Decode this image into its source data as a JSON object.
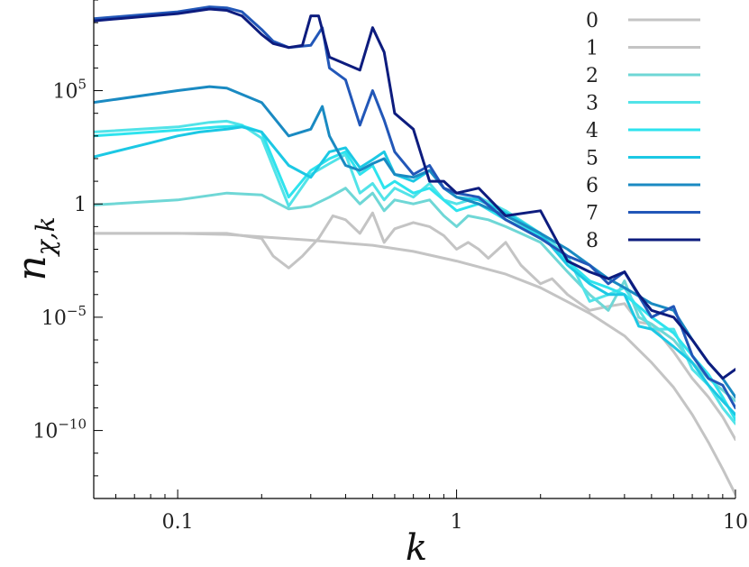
{
  "chart_data": {
    "type": "line",
    "xscale": "log",
    "yscale": "log",
    "xlim": [
      0.05,
      10
    ],
    "ylim": [
      1e-13,
      1000000000.0
    ],
    "xlabel": "k",
    "ylabel_main": "n",
    "ylabel_sub": "χ,k",
    "grid": false,
    "legend_position": "top-right",
    "x_ticks": [
      {
        "value": 0.1,
        "label": "0.1"
      },
      {
        "value": 1,
        "label": "1"
      },
      {
        "value": 10,
        "label": "10"
      }
    ],
    "y_ticks": [
      {
        "value": 100000.0,
        "base": "10",
        "exp": "5"
      },
      {
        "value": 1,
        "base": "1",
        "exp": ""
      },
      {
        "value": 1e-05,
        "base": "10",
        "exp": "−5"
      },
      {
        "value": 1e-10,
        "base": "10",
        "exp": "−10"
      }
    ],
    "series": [
      {
        "name": "0",
        "color": "#c4c4c4",
        "points": [
          [
            0.05,
            0.05
          ],
          [
            0.1,
            0.05
          ],
          [
            0.15,
            0.045
          ],
          [
            0.2,
            0.035
          ],
          [
            0.3,
            0.025
          ],
          [
            0.5,
            0.015
          ],
          [
            0.7,
            0.008
          ],
          [
            1.0,
            0.003
          ],
          [
            1.5,
            0.0008
          ],
          [
            2.0,
            0.0002
          ],
          [
            3.0,
            1.5e-05
          ],
          [
            4.0,
            1.5e-06
          ],
          [
            5.0,
            1e-07
          ],
          [
            6.0,
            8e-09
          ],
          [
            7.0,
            5e-10
          ],
          [
            8.0,
            3e-11
          ],
          [
            9.0,
            2e-12
          ],
          [
            10.0,
            1.5e-13
          ]
        ]
      },
      {
        "name": "1",
        "color": "#c4c4c4",
        "points": [
          [
            0.05,
            0.05
          ],
          [
            0.1,
            0.05
          ],
          [
            0.15,
            0.05
          ],
          [
            0.2,
            0.03
          ],
          [
            0.22,
            0.005
          ],
          [
            0.25,
            0.0015
          ],
          [
            0.28,
            0.005
          ],
          [
            0.32,
            0.03
          ],
          [
            0.36,
            0.3
          ],
          [
            0.4,
            0.2
          ],
          [
            0.45,
            0.05
          ],
          [
            0.5,
            0.4
          ],
          [
            0.55,
            0.02
          ],
          [
            0.6,
            0.08
          ],
          [
            0.7,
            0.15
          ],
          [
            0.8,
            0.1
          ],
          [
            0.9,
            0.04
          ],
          [
            1.0,
            0.01
          ],
          [
            1.1,
            0.02
          ],
          [
            1.2,
            0.01
          ],
          [
            1.3,
            0.004
          ],
          [
            1.5,
            0.02
          ],
          [
            1.7,
            0.002
          ],
          [
            2.0,
            0.0003
          ],
          [
            2.2,
            0.0005
          ],
          [
            2.5,
            0.0001
          ],
          [
            3.0,
            2e-05
          ],
          [
            3.5,
            3e-05
          ],
          [
            4.0,
            4e-05
          ],
          [
            4.5,
            6e-06
          ],
          [
            5.0,
            5e-06
          ],
          [
            6.0,
            3e-07
          ],
          [
            7.0,
            2e-08
          ],
          [
            8.0,
            3e-09
          ],
          [
            9.0,
            4e-10
          ],
          [
            10.0,
            4e-11
          ]
        ]
      },
      {
        "name": "2",
        "color": "#6fd7d6",
        "points": [
          [
            0.05,
            0.9
          ],
          [
            0.1,
            1.5
          ],
          [
            0.15,
            3.0
          ],
          [
            0.2,
            2.5
          ],
          [
            0.25,
            0.6
          ],
          [
            0.3,
            0.8
          ],
          [
            0.35,
            2.0
          ],
          [
            0.4,
            5.0
          ],
          [
            0.45,
            1.0
          ],
          [
            0.5,
            3.0
          ],
          [
            0.55,
            0.5
          ],
          [
            0.6,
            1.5
          ],
          [
            0.7,
            1.0
          ],
          [
            0.8,
            1.5
          ],
          [
            0.9,
            0.3
          ],
          [
            1.0,
            0.1
          ],
          [
            1.1,
            0.3
          ],
          [
            1.3,
            0.2
          ],
          [
            1.5,
            0.1
          ],
          [
            1.7,
            0.05
          ],
          [
            2.0,
            0.02
          ],
          [
            2.5,
            0.001
          ],
          [
            3.0,
            0.0001
          ],
          [
            3.5,
            2e-05
          ],
          [
            4.0,
            0.0004
          ],
          [
            4.5,
            1e-05
          ],
          [
            5.0,
            5e-06
          ],
          [
            6.0,
            1e-06
          ],
          [
            7.0,
            1e-07
          ],
          [
            8.0,
            2e-08
          ],
          [
            9.0,
            6e-09
          ],
          [
            10.0,
            2e-09
          ]
        ]
      },
      {
        "name": "3",
        "color": "#52e3e8",
        "points": [
          [
            0.05,
            1500
          ],
          [
            0.1,
            2500
          ],
          [
            0.13,
            4000
          ],
          [
            0.15,
            4500
          ],
          [
            0.17,
            3000
          ],
          [
            0.2,
            800
          ],
          [
            0.25,
            0.8
          ],
          [
            0.3,
            20
          ],
          [
            0.35,
            60
          ],
          [
            0.4,
            150
          ],
          [
            0.45,
            3.0
          ],
          [
            0.5,
            8.0
          ],
          [
            0.55,
            1.5
          ],
          [
            0.6,
            5.0
          ],
          [
            0.7,
            2.0
          ],
          [
            0.8,
            8.0
          ],
          [
            0.9,
            1.5
          ],
          [
            1.0,
            1.0
          ],
          [
            1.2,
            2.0
          ],
          [
            1.5,
            0.5
          ],
          [
            2.0,
            0.05
          ],
          [
            2.5,
            0.005
          ],
          [
            3.0,
            5e-05
          ],
          [
            3.5,
            0.0001
          ],
          [
            4.0,
            0.0002
          ],
          [
            5.0,
            3e-06
          ],
          [
            6.0,
            3e-06
          ],
          [
            7.0,
            5e-08
          ],
          [
            8.0,
            1e-08
          ],
          [
            9.0,
            1e-09
          ],
          [
            10.0,
            2e-10
          ]
        ]
      },
      {
        "name": "4",
        "color": "#2ee3ee",
        "points": [
          [
            0.05,
            1000
          ],
          [
            0.1,
            1800
          ],
          [
            0.14,
            2500
          ],
          [
            0.17,
            2800
          ],
          [
            0.2,
            1500
          ],
          [
            0.25,
            2.0
          ],
          [
            0.3,
            30
          ],
          [
            0.35,
            100
          ],
          [
            0.4,
            200
          ],
          [
            0.45,
            20
          ],
          [
            0.5,
            50
          ],
          [
            0.55,
            5.0
          ],
          [
            0.6,
            10.0
          ],
          [
            0.7,
            3.0
          ],
          [
            0.8,
            5.0
          ],
          [
            1.0,
            0.5
          ],
          [
            1.2,
            1.0
          ],
          [
            1.5,
            0.2
          ],
          [
            2.0,
            0.04
          ],
          [
            2.5,
            0.003
          ],
          [
            3.0,
            0.0004
          ],
          [
            3.5,
            0.0002
          ],
          [
            4.0,
            0.0001
          ],
          [
            5.0,
            1e-05
          ],
          [
            6.0,
            2e-06
          ],
          [
            7.0,
            2e-07
          ],
          [
            8.0,
            3e-08
          ],
          [
            9.0,
            3e-09
          ],
          [
            10.0,
            3e-10
          ]
        ]
      },
      {
        "name": "5",
        "color": "#1cc8e4",
        "points": [
          [
            0.05,
            120
          ],
          [
            0.08,
            500
          ],
          [
            0.1,
            1000
          ],
          [
            0.12,
            1500
          ],
          [
            0.15,
            2000
          ],
          [
            0.17,
            2500
          ],
          [
            0.2,
            1500
          ],
          [
            0.25,
            50
          ],
          [
            0.3,
            15
          ],
          [
            0.35,
            200
          ],
          [
            0.4,
            300
          ],
          [
            0.45,
            40
          ],
          [
            0.5,
            90
          ],
          [
            0.55,
            200
          ],
          [
            0.6,
            20
          ],
          [
            0.7,
            10
          ],
          [
            0.8,
            30
          ],
          [
            0.9,
            5.0
          ],
          [
            1.0,
            2.0
          ],
          [
            1.2,
            1.5
          ],
          [
            1.5,
            0.4
          ],
          [
            2.0,
            0.05
          ],
          [
            2.5,
            0.002
          ],
          [
            3.0,
            0.0003
          ],
          [
            3.5,
            0.0001
          ],
          [
            4.0,
            0.0001
          ],
          [
            4.5,
            4e-06
          ],
          [
            5.0,
            3e-06
          ],
          [
            6.0,
            5e-07
          ],
          [
            7.0,
            1e-07
          ],
          [
            8.0,
            1e-08
          ],
          [
            9.0,
            2e-09
          ],
          [
            10.0,
            5e-10
          ]
        ]
      },
      {
        "name": "6",
        "color": "#1a8ac2",
        "points": [
          [
            0.05,
            30000
          ],
          [
            0.1,
            100000
          ],
          [
            0.13,
            150000
          ],
          [
            0.15,
            130000
          ],
          [
            0.2,
            30000
          ],
          [
            0.25,
            1000
          ],
          [
            0.3,
            2000
          ],
          [
            0.33,
            20000
          ],
          [
            0.35,
            1000
          ],
          [
            0.4,
            50
          ],
          [
            0.45,
            30
          ],
          [
            0.5,
            60
          ],
          [
            0.55,
            100
          ],
          [
            0.6,
            20
          ],
          [
            0.7,
            15
          ],
          [
            0.8,
            30
          ],
          [
            0.9,
            5.0
          ],
          [
            1.0,
            2.0
          ],
          [
            1.2,
            1.0
          ],
          [
            1.5,
            0.3
          ],
          [
            2.0,
            0.05
          ],
          [
            2.5,
            0.01
          ],
          [
            3.0,
            0.002
          ],
          [
            3.5,
            0.0005
          ],
          [
            4.0,
            0.0002
          ],
          [
            5.0,
            4e-05
          ],
          [
            6.0,
            2e-05
          ],
          [
            7.0,
            1e-06
          ],
          [
            8.0,
            1e-07
          ],
          [
            9.0,
            2e-08
          ],
          [
            10.0,
            3e-09
          ]
        ]
      },
      {
        "name": "7",
        "color": "#2257b8",
        "points": [
          [
            0.05,
            150000000.0
          ],
          [
            0.1,
            300000000.0
          ],
          [
            0.13,
            500000000.0
          ],
          [
            0.15,
            450000000.0
          ],
          [
            0.17,
            300000000.0
          ],
          [
            0.2,
            50000000.0
          ],
          [
            0.22,
            15000000.0
          ],
          [
            0.25,
            8000000.0
          ],
          [
            0.3,
            10000000.0
          ],
          [
            0.33,
            60000000.0
          ],
          [
            0.35,
            1000000.0
          ],
          [
            0.4,
            300000
          ],
          [
            0.45,
            3000
          ],
          [
            0.5,
            100000
          ],
          [
            0.55,
            5000
          ],
          [
            0.6,
            200
          ],
          [
            0.7,
            20
          ],
          [
            0.8,
            50
          ],
          [
            0.9,
            5.0
          ],
          [
            1.0,
            3.0
          ],
          [
            1.2,
            2.0
          ],
          [
            1.5,
            0.2
          ],
          [
            2.0,
            0.03
          ],
          [
            2.5,
            0.005
          ],
          [
            3.0,
            0.002
          ],
          [
            3.5,
            0.0003
          ],
          [
            4.0,
            0.001
          ],
          [
            5.0,
            1e-05
          ],
          [
            6.0,
            3e-05
          ],
          [
            7.0,
            2e-07
          ],
          [
            8.0,
            2e-08
          ],
          [
            9.0,
            1e-08
          ],
          [
            10.0,
            1e-09
          ]
        ]
      },
      {
        "name": "8",
        "color": "#0d1c7e",
        "points": [
          [
            0.05,
            120000000.0
          ],
          [
            0.1,
            250000000.0
          ],
          [
            0.13,
            400000000.0
          ],
          [
            0.15,
            350000000.0
          ],
          [
            0.17,
            200000000.0
          ],
          [
            0.2,
            30000000.0
          ],
          [
            0.22,
            12000000.0
          ],
          [
            0.25,
            8000000.0
          ],
          [
            0.28,
            10000000.0
          ],
          [
            0.3,
            200000000.0
          ],
          [
            0.32,
            200000000.0
          ],
          [
            0.35,
            3000000.0
          ],
          [
            0.4,
            1500000.0
          ],
          [
            0.45,
            800000
          ],
          [
            0.5,
            60000000.0
          ],
          [
            0.55,
            5000000.0
          ],
          [
            0.6,
            10000
          ],
          [
            0.7,
            2000
          ],
          [
            0.8,
            10.0
          ],
          [
            0.9,
            10.0
          ],
          [
            1.0,
            3.0
          ],
          [
            1.2,
            5.0
          ],
          [
            1.5,
            0.3
          ],
          [
            2.0,
            0.5
          ],
          [
            2.5,
            0.003
          ],
          [
            3.0,
            0.001
          ],
          [
            3.5,
            0.0005
          ],
          [
            4.0,
            0.001
          ],
          [
            4.5,
            0.0001
          ],
          [
            5.0,
            2e-05
          ],
          [
            6.0,
            1e-05
          ],
          [
            7.0,
            1e-06
          ],
          [
            8.0,
            1e-07
          ],
          [
            9.0,
            2e-08
          ],
          [
            10.0,
            5e-08
          ]
        ]
      }
    ]
  }
}
